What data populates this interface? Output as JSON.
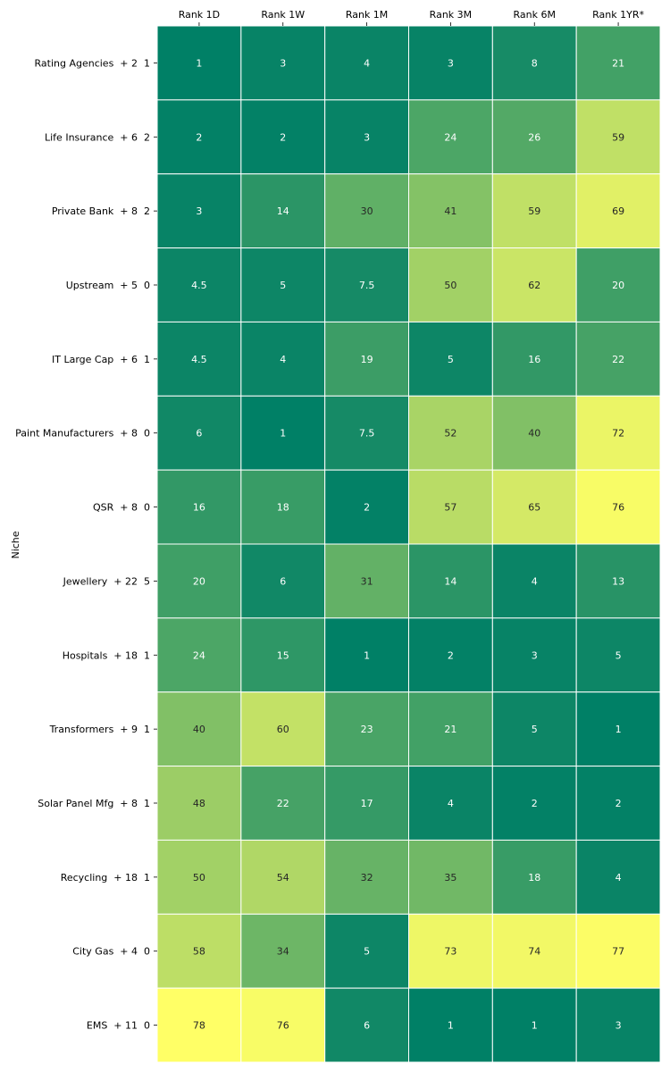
{
  "chart_data": {
    "type": "heatmap",
    "title": "",
    "xlabel": "",
    "ylabel": "Niche",
    "colormap": "summer_r",
    "color_range": [
      1,
      78
    ],
    "columns": [
      "Rank 1D",
      "Rank 1W",
      "Rank 1M",
      "Rank 3M",
      "Rank 6M",
      "Rank 1YR*"
    ],
    "rows": [
      "Rating Agencies  + 2  1",
      "Life Insurance  + 6  2",
      "Private Bank  + 8  2",
      "Upstream  + 5  0",
      "IT Large Cap  + 6  1",
      "Paint Manufacturers  + 8  0",
      "QSR  + 8  0",
      "Jewellery  + 22  5",
      "Hospitals  + 18  1",
      "Transformers  + 9  1",
      "Solar Panel Mfg  + 8  1",
      "Recycling  + 18  1",
      "City Gas  + 4  0",
      "EMS  + 11  0"
    ],
    "values": [
      [
        1,
        3,
        4,
        3,
        8,
        21
      ],
      [
        2,
        2,
        3,
        24,
        26,
        59
      ],
      [
        3,
        14,
        30,
        41,
        59,
        69
      ],
      [
        4.5,
        5,
        7.5,
        50,
        62,
        20
      ],
      [
        4.5,
        4,
        19,
        5,
        16,
        22
      ],
      [
        6,
        1,
        7.5,
        52,
        40,
        72
      ],
      [
        16,
        18,
        2,
        57,
        65,
        76
      ],
      [
        20,
        6,
        31,
        14,
        4,
        13
      ],
      [
        24,
        15,
        1,
        2,
        3,
        5
      ],
      [
        40,
        60,
        23,
        21,
        5,
        1
      ],
      [
        48,
        22,
        17,
        4,
        2,
        2
      ],
      [
        50,
        54,
        32,
        35,
        18,
        4
      ],
      [
        58,
        34,
        5,
        73,
        74,
        77
      ],
      [
        78,
        76,
        6,
        1,
        1,
        3
      ]
    ],
    "labels": [
      [
        "1",
        "3",
        "4",
        "3",
        "8",
        "21"
      ],
      [
        "2",
        "2",
        "3",
        "24",
        "26",
        "59"
      ],
      [
        "3",
        "14",
        "30",
        "41",
        "59",
        "69"
      ],
      [
        "4.5",
        "5",
        "7.5",
        "50",
        "62",
        "20"
      ],
      [
        "4.5",
        "4",
        "19",
        "5",
        "16",
        "22"
      ],
      [
        "6",
        "1",
        "7.5",
        "52",
        "40",
        "72"
      ],
      [
        "16",
        "18",
        "2",
        "57",
        "65",
        "76"
      ],
      [
        "20",
        "6",
        "31",
        "14",
        "4",
        "13"
      ],
      [
        "24",
        "15",
        "1",
        "2",
        "3",
        "5"
      ],
      [
        "40",
        "60",
        "23",
        "21",
        "5",
        "1"
      ],
      [
        "48",
        "22",
        "17",
        "4",
        "2",
        "2"
      ],
      [
        "50",
        "54",
        "32",
        "35",
        "18",
        "4"
      ],
      [
        "58",
        "34",
        "5",
        "73",
        "74",
        "77"
      ],
      [
        "78",
        "76",
        "6",
        "1",
        "1",
        "3"
      ]
    ]
  }
}
